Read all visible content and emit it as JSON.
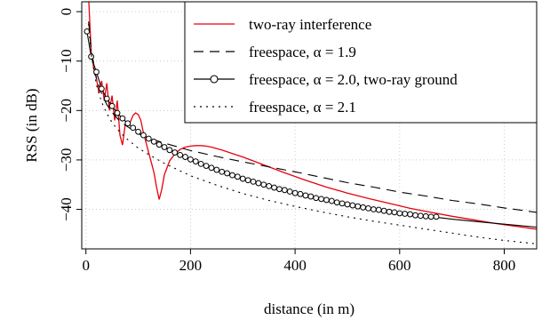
{
  "chart_data": {
    "type": "line",
    "xlabel": "distance (in m)",
    "ylabel": "RSS (in dB)",
    "xlim": [
      -8,
      862
    ],
    "ylim": [
      -48,
      2
    ],
    "xticks": [
      0,
      200,
      400,
      600,
      800
    ],
    "yticks": [
      0,
      -10,
      -20,
      -30,
      -40
    ],
    "grid": true,
    "legend_position": "top-right",
    "series": [
      {
        "name": "two-ray interference",
        "color": "#e8000b",
        "style": "solid",
        "x": [
          5,
          10,
          15,
          20,
          25,
          30,
          35,
          40,
          45,
          50,
          55,
          60,
          65,
          70,
          75,
          80,
          85,
          90,
          95,
          100,
          105,
          110,
          115,
          120,
          125,
          130,
          135,
          140,
          145,
          150,
          160,
          170,
          180,
          190,
          200,
          210,
          220,
          230,
          240,
          260,
          280,
          300,
          340,
          380,
          420,
          460,
          500,
          540,
          580,
          620,
          660,
          700,
          740,
          780,
          820,
          862
        ],
        "y": [
          3,
          -8,
          -11.5,
          -13.5,
          -16.5,
          -14,
          -18,
          -14.5,
          -20,
          -17,
          -22,
          -18,
          -25,
          -27,
          -23,
          -22.5,
          -22.3,
          -21,
          -20.5,
          -20.8,
          -22,
          -24.5,
          -26.5,
          -28.5,
          -30.5,
          -32.5,
          -35.5,
          -38,
          -36,
          -33,
          -30.2,
          -28.8,
          -27.9,
          -27.4,
          -27.2,
          -27.1,
          -27.1,
          -27.2,
          -27.4,
          -28,
          -28.7,
          -29.4,
          -31,
          -32.6,
          -34.1,
          -35.5,
          -36.7,
          -37.8,
          -38.8,
          -39.8,
          -40.6,
          -41.4,
          -42.1,
          -42.8,
          -43.4,
          -44
        ]
      },
      {
        "name": "freespace, α = 1.9",
        "color": "#000000",
        "style": "dashed",
        "x": [
          5,
          10,
          20,
          30,
          40,
          50,
          60,
          70,
          80,
          100,
          120,
          150,
          200,
          250,
          300,
          350,
          400,
          450,
          500,
          550,
          600,
          650,
          700,
          750,
          800,
          862
        ],
        "y": [
          -2,
          -7.6,
          -13.5,
          -16.6,
          -18.8,
          -20.4,
          -21.6,
          -22.6,
          -23.3,
          -24.7,
          -25.6,
          -26.6,
          -28.1,
          -29.3,
          -30.4,
          -31.4,
          -32.4,
          -33.5,
          -34.6,
          -35.5,
          -36.5,
          -37.3,
          -38.2,
          -38.9,
          -39.7,
          -40.6
        ]
      },
      {
        "name": "freespace, α = 2.0, two-ray ground",
        "color": "#000000",
        "style": "solid-circles",
        "x": [
          2,
          10,
          20,
          30,
          40,
          50,
          60,
          70,
          80,
          90,
          100,
          110,
          120,
          130,
          140,
          150,
          160,
          170,
          180,
          190,
          200,
          210,
          220,
          230,
          240,
          250,
          260,
          270,
          280,
          290,
          300,
          310,
          320,
          330,
          340,
          350,
          360,
          370,
          380,
          390,
          400,
          410,
          420,
          430,
          440,
          450,
          460,
          470,
          480,
          490,
          500,
          510,
          520,
          530,
          540,
          550,
          560,
          570,
          580,
          590,
          600,
          610,
          620,
          630,
          640,
          650,
          660,
          670
        ],
        "y": [
          -4,
          -9.1,
          -12.2,
          -15.6,
          -17.6,
          -19.1,
          -20.5,
          -21.6,
          -22.6,
          -23.5,
          -24.3,
          -25,
          -25.7,
          -26.3,
          -26.9,
          -27.4,
          -28,
          -28.5,
          -29,
          -29.4,
          -29.9,
          -30.3,
          -30.8,
          -31.2,
          -31.6,
          -32,
          -32.4,
          -32.7,
          -33.1,
          -33.4,
          -33.8,
          -34.1,
          -34.4,
          -34.7,
          -35,
          -35.3,
          -35.6,
          -35.9,
          -36.1,
          -36.4,
          -36.7,
          -36.9,
          -37.2,
          -37.4,
          -37.7,
          -37.9,
          -38.1,
          -38.3,
          -38.6,
          -38.8,
          -39,
          -39.2,
          -39.4,
          -39.6,
          -39.8,
          -40,
          -40.1,
          -40.3,
          -40.5,
          -40.6,
          -40.8,
          -40.9,
          -41,
          -41.2,
          -41.3,
          -41.4,
          -41.5,
          -41.5
        ],
        "line_x": [
          2,
          10,
          20,
          30,
          40,
          50,
          60,
          70,
          80,
          100,
          120,
          150,
          200,
          250,
          300,
          350,
          400,
          450,
          500,
          550,
          600,
          650,
          670,
          700,
          750,
          800,
          862
        ],
        "line_y": [
          -4,
          -9.1,
          -12.2,
          -15.6,
          -17.6,
          -19.1,
          -20.5,
          -21.6,
          -22.6,
          -24.3,
          -25.7,
          -27.4,
          -29.9,
          -32,
          -33.8,
          -35.3,
          -36.7,
          -37.9,
          -39,
          -40,
          -40.8,
          -41.4,
          -41.6,
          -42,
          -42.5,
          -43,
          -43.6
        ]
      },
      {
        "name": "freespace, α = 2.1",
        "color": "#000000",
        "style": "dotted",
        "x": [
          5,
          10,
          20,
          30,
          40,
          50,
          60,
          70,
          80,
          100,
          120,
          150,
          200,
          250,
          300,
          350,
          400,
          450,
          500,
          550,
          600,
          650,
          700,
          750,
          800,
          862
        ],
        "y": [
          -2.5,
          -8.5,
          -14.8,
          -18.3,
          -20.6,
          -22.4,
          -23.8,
          -24.9,
          -25.9,
          -27.6,
          -28.9,
          -30.7,
          -33.2,
          -35.1,
          -36.8,
          -38.2,
          -39.4,
          -40.5,
          -41.5,
          -42.4,
          -43.2,
          -44,
          -44.8,
          -45.6,
          -46.3,
          -47
        ]
      }
    ]
  }
}
